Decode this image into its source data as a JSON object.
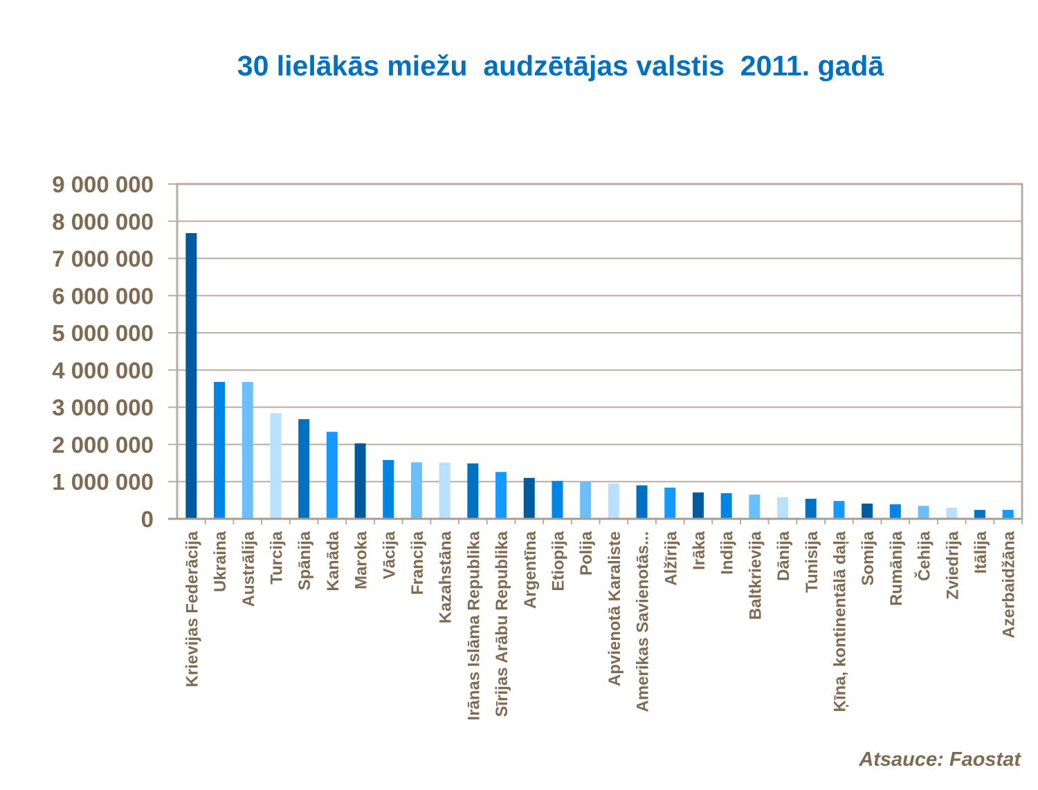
{
  "chart_data": {
    "type": "bar",
    "title": "30 lielākās miežu  audzētājas valstis  2011. gadā",
    "source": "Atsauce: Faostat",
    "xlabel": "",
    "ylabel": "",
    "ylim": [
      0,
      9000000
    ],
    "yticks": [
      0,
      1000000,
      2000000,
      3000000,
      4000000,
      5000000,
      6000000,
      7000000,
      8000000,
      9000000
    ],
    "ytick_labels": [
      "0",
      "1 000 000",
      "2 000 000",
      "3 000 000",
      "4 000 000",
      "5 000 000",
      "6 000 000",
      "7 000 000",
      "8 000 000",
      "9 000 000"
    ],
    "grid": true,
    "legend": "none",
    "categories": [
      "Krievijas Federācija",
      "Ukraina",
      "Austrālija",
      "Turcija",
      "Spānija",
      "Kanāda",
      "Maroka",
      "Vācija",
      "Francija",
      "Kazahstāna",
      "Irānas Islāma Republika",
      "Sīrijas Arābu Republika",
      "Argentīna",
      "Etiopija",
      "Polija",
      "Apvienotā Karaliste",
      "Amerikas Savienotās...",
      "Alžīrija",
      "Irāka",
      "Indija",
      "Baltkrievija",
      "Dānija",
      "Tunisija",
      "Ķīna, kontinentālā daļa",
      "Somija",
      "Rumānija",
      "Čehija",
      "Zviedrija",
      "Itālija",
      "Azerbaidžāna"
    ],
    "values": [
      7680000,
      3680000,
      3680000,
      2840000,
      2680000,
      2340000,
      2030000,
      1580000,
      1520000,
      1510000,
      1490000,
      1260000,
      1100000,
      1020000,
      1000000,
      950000,
      900000,
      840000,
      710000,
      690000,
      650000,
      580000,
      540000,
      480000,
      410000,
      390000,
      350000,
      300000,
      240000,
      240000
    ],
    "bar_colors": [
      "#005a9e",
      "#0084e6",
      "#6cbfff",
      "#b9e0ff",
      "#0071c1",
      "#1399ff"
    ]
  },
  "colors": {
    "title": "#0070c0",
    "text": "#7f6b52",
    "grid": "#b8ada2"
  }
}
